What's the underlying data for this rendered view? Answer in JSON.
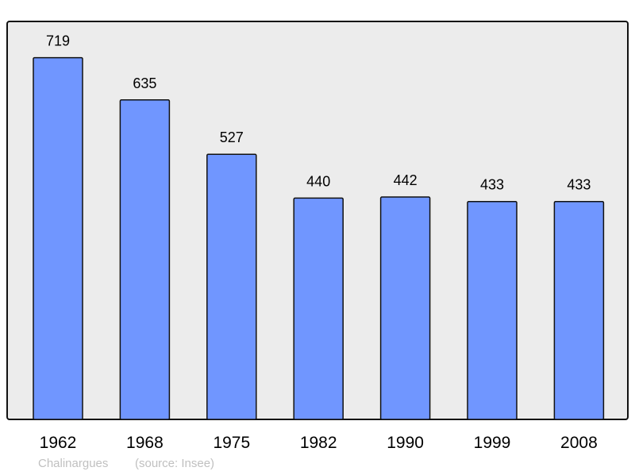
{
  "chart_data": {
    "type": "bar",
    "categories": [
      "1962",
      "1968",
      "1975",
      "1982",
      "1990",
      "1999",
      "2008"
    ],
    "values": [
      719,
      635,
      527,
      440,
      442,
      433,
      433
    ],
    "data_labels": [
      "719",
      "635",
      "527",
      "440",
      "442",
      "433",
      "433"
    ],
    "title": "",
    "xlabel": "",
    "ylabel": "",
    "ylim": [
      0,
      791
    ],
    "grid": false,
    "bar_color": "#7096ff",
    "background_color": "#ececec"
  },
  "footer": {
    "place": "Chalinargues",
    "source": "(source: Insee)"
  }
}
